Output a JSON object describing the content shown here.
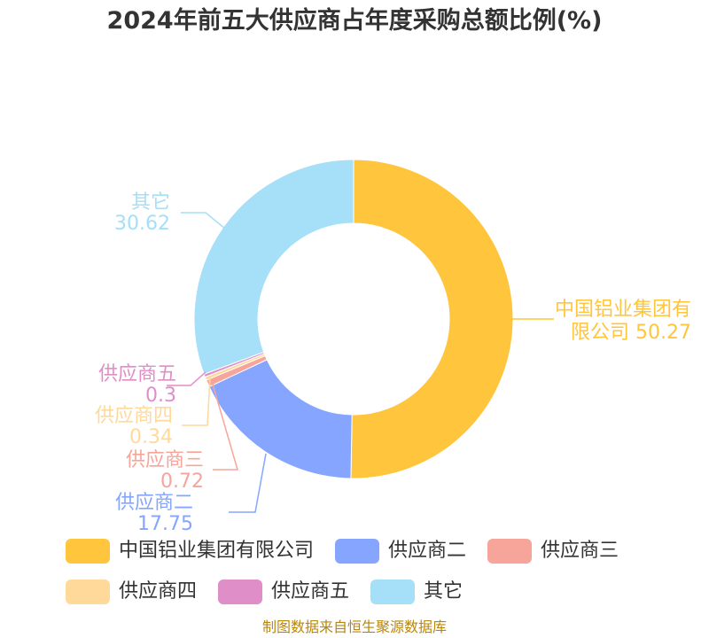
{
  "title": "2024年前五大供应商占年度采购总额比例(%)",
  "source": "制图数据来自恒生聚源数据库",
  "chart_data": {
    "type": "pie",
    "style": "donut",
    "title": "2024年前五大供应商占年度采购总额比例(%)",
    "unit": "%",
    "slices": [
      {
        "name": "中国铝业集团有限公司",
        "value": 50.27,
        "color": "#FFC53D",
        "label_lines": [
          "中国铝业集团有",
          "限公司 50.27"
        ]
      },
      {
        "name": "供应商二",
        "value": 17.75,
        "color": "#85A5FF",
        "label_lines": [
          "供应商二",
          "17.75"
        ]
      },
      {
        "name": "供应商三",
        "value": 0.72,
        "color": "#F7A59A",
        "label_lines": [
          "供应商三",
          "0.72"
        ]
      },
      {
        "name": "供应商四",
        "value": 0.34,
        "color": "#FFD99A",
        "label_lines": [
          "供应商四",
          "0.34"
        ]
      },
      {
        "name": "供应商五",
        "value": 0.3,
        "color": "#E08EC7",
        "label_lines": [
          "供应商五",
          "0.3"
        ]
      },
      {
        "name": "其它",
        "value": 30.62,
        "color": "#A5DFF8",
        "label_lines": [
          "其它",
          "30.62"
        ]
      }
    ],
    "legend_position": "bottom"
  },
  "legend": {
    "rows": [
      [
        {
          "label": "中国铝业集团有限公司",
          "color": "#FFC53D"
        },
        {
          "label": "供应商二",
          "color": "#85A5FF"
        },
        {
          "label": "供应商三",
          "color": "#F7A59A"
        }
      ],
      [
        {
          "label": "供应商四",
          "color": "#FFD99A"
        },
        {
          "label": "供应商五",
          "color": "#E08EC7"
        },
        {
          "label": "其它",
          "color": "#A5DFF8"
        }
      ]
    ]
  }
}
